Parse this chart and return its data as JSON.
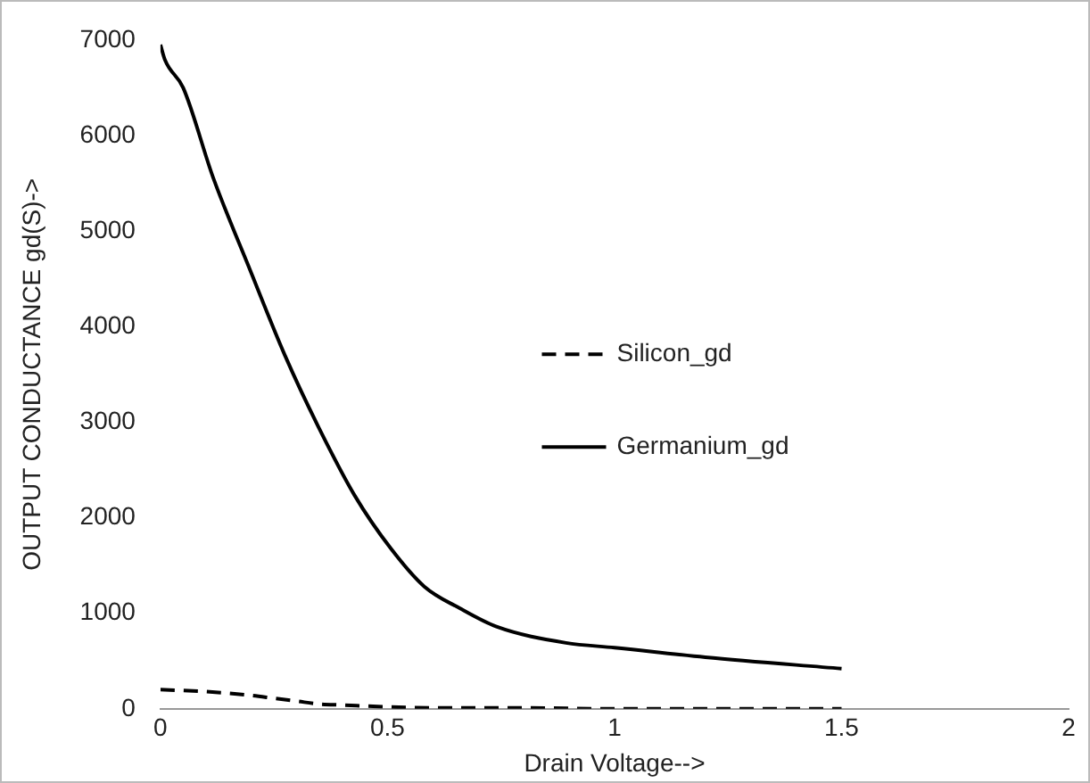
{
  "chart_data": {
    "type": "line",
    "xlabel": "Drain Voltage-->",
    "ylabel": "OUTPUT CONDUCTANCE gd(S)->",
    "xlim": [
      0,
      2
    ],
    "xticks": [
      0,
      0.5,
      1,
      1.5,
      2
    ],
    "ylim": [
      0,
      7000
    ],
    "yticks": [
      0,
      1000,
      2000,
      3000,
      4000,
      5000,
      6000,
      7000
    ],
    "grid": false,
    "legend": "right",
    "marker": "none",
    "series": [
      {
        "name": "Silicon_gd",
        "color": "#000000",
        "line_style": "dashed",
        "x": [
          0,
          0.1,
          0.2,
          0.25,
          0.3,
          0.35,
          0.4,
          0.5,
          0.6,
          0.8,
          1,
          1.2,
          1.5
        ],
        "values": [
          200,
          180,
          140,
          110,
          80,
          50,
          40,
          20,
          10,
          10,
          0,
          0,
          0
        ]
      },
      {
        "name": "Germanium_gd",
        "color": "#000000",
        "line_style": "solid",
        "x": [
          0,
          0.01,
          0.05,
          0.116,
          0.195,
          0.274,
          0.349,
          0.428,
          0.507,
          0.581,
          0.66,
          0.74,
          0.893,
          1,
          1.2,
          1.5
        ],
        "values": [
          6950,
          6790,
          6500,
          5560,
          4620,
          3700,
          2940,
          2230,
          1680,
          1280,
          1050,
          860,
          690,
          640,
          540,
          420
        ]
      }
    ]
  }
}
